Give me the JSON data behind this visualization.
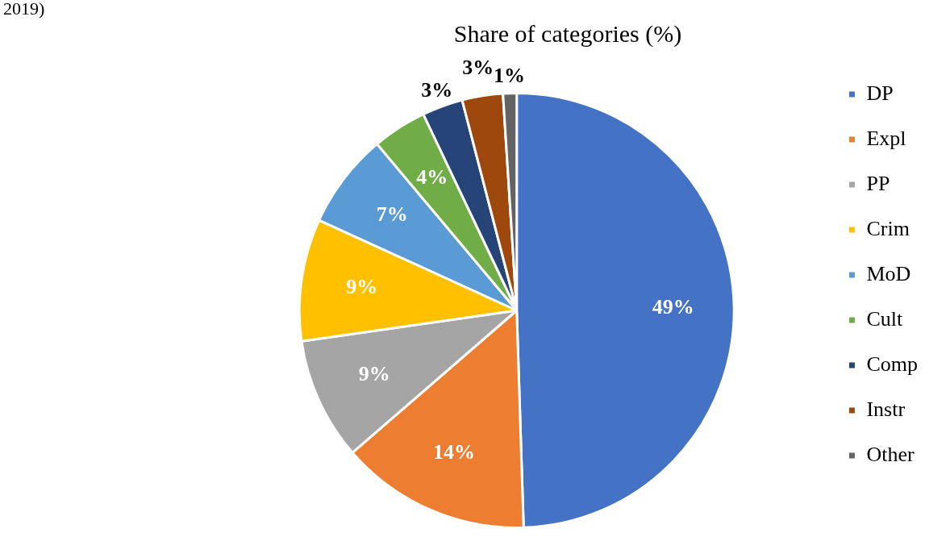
{
  "chart_data": {
    "type": "pie",
    "title": "Share of categories (%)",
    "annotations": [
      "2019)"
    ],
    "categories": [
      "DP",
      "Expl",
      "PP",
      "Crim",
      "MoD",
      "Cult",
      "Comp",
      "Instr",
      "Other"
    ],
    "values": [
      49,
      14,
      9,
      9,
      7,
      4,
      3,
      3,
      1
    ],
    "colors": [
      "#4472c4",
      "#ed7d31",
      "#a5a5a5",
      "#ffc000",
      "#5b9bd5",
      "#70ad47",
      "#264478",
      "#9e480e",
      "#636363"
    ],
    "value_labels": [
      "49%",
      "14%",
      "9%",
      "9%",
      "7%",
      "4%",
      "3%",
      "3%",
      "1%"
    ],
    "legend": "right"
  }
}
